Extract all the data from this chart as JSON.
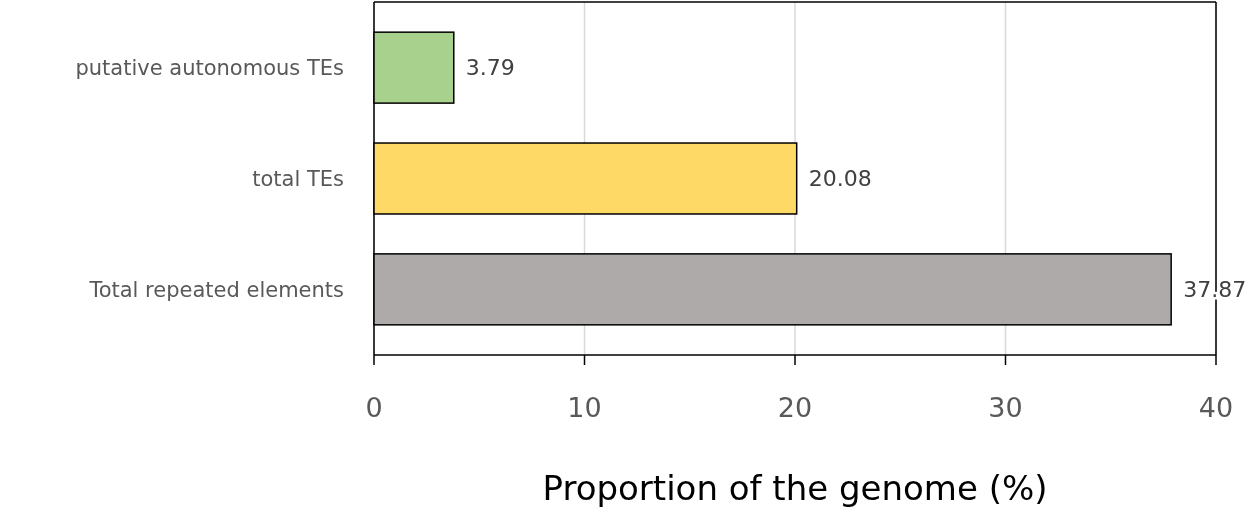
{
  "chart_data": {
    "type": "bar",
    "orientation": "horizontal",
    "xlabel": "Proportion of the genome (%)",
    "categories": [
      "putative autonomous TEs",
      "total TEs",
      "Total repeated elements"
    ],
    "values": [
      3.79,
      20.08,
      37.87
    ],
    "colors": [
      "#a9d18e",
      "#ffd966",
      "#aeaaaa"
    ],
    "xlim": [
      0,
      40
    ],
    "xticks": [
      0,
      10,
      20,
      30,
      40
    ],
    "grid": "x",
    "data_labels": true
  }
}
